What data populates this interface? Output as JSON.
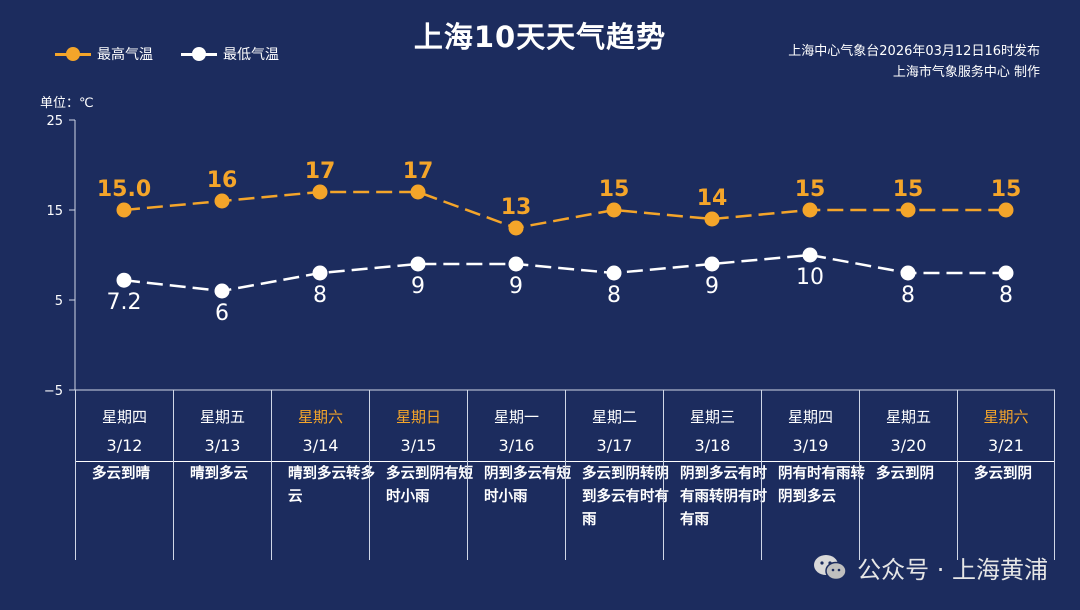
{
  "title": "上海10天天气趋势",
  "legend": {
    "high": "最高气温",
    "low": "最低气温"
  },
  "publisher": {
    "line1": "上海中心气象台2026年03月12日16时发布",
    "line2": "上海市气象服务中心  制作"
  },
  "unit_label": "单位：℃",
  "watermark": "公众号 · 上海黄浦",
  "colors": {
    "background": "#1c2c5e",
    "high": "#f4a52a",
    "low": "#ffffff",
    "weekend_text": "#f4a52a"
  },
  "chart_data": {
    "type": "line",
    "ylim": [
      -5,
      25
    ],
    "yticks": [
      25,
      15,
      5,
      -5
    ],
    "grid": false,
    "legend_position": "top-left",
    "categories": [
      "3/12",
      "3/13",
      "3/14",
      "3/15",
      "3/16",
      "3/17",
      "3/18",
      "3/19",
      "3/20",
      "3/21"
    ],
    "series": [
      {
        "name": "最高气温",
        "values": [
          15.0,
          16,
          17,
          17,
          13,
          15,
          14,
          15,
          15,
          15
        ],
        "labels": [
          "15.0",
          "16",
          "17",
          "17",
          "13",
          "15",
          "14",
          "15",
          "15",
          "15"
        ]
      },
      {
        "name": "最低气温",
        "values": [
          7.2,
          6,
          8,
          9,
          9,
          8,
          9,
          10,
          8,
          8
        ],
        "labels": [
          "7.2",
          "6",
          "8",
          "9",
          "9",
          "8",
          "9",
          "10",
          "8",
          "8"
        ]
      }
    ]
  },
  "days": [
    {
      "weekday": "星期四",
      "date": "3/12",
      "weather": "多云到晴",
      "weekend": false
    },
    {
      "weekday": "星期五",
      "date": "3/13",
      "weather": "晴到多云",
      "weekend": false
    },
    {
      "weekday": "星期六",
      "date": "3/14",
      "weather": "晴到多云转多云",
      "weekend": true
    },
    {
      "weekday": "星期日",
      "date": "3/15",
      "weather": "多云到阴有短时小雨",
      "weekend": true
    },
    {
      "weekday": "星期一",
      "date": "3/16",
      "weather": "阴到多云有短时小雨",
      "weekend": false
    },
    {
      "weekday": "星期二",
      "date": "3/17",
      "weather": "多云到阴转阴到多云有时有雨",
      "weekend": false
    },
    {
      "weekday": "星期三",
      "date": "3/18",
      "weather": "阴到多云有时有雨转阴有时有雨",
      "weekend": false
    },
    {
      "weekday": "星期四",
      "date": "3/19",
      "weather": "阴有时有雨转阴到多云",
      "weekend": false
    },
    {
      "weekday": "星期五",
      "date": "3/20",
      "weather": "多云到阴",
      "weekend": false
    },
    {
      "weekday": "星期六",
      "date": "3/21",
      "weather": "多云到阴",
      "weekend": true
    }
  ]
}
